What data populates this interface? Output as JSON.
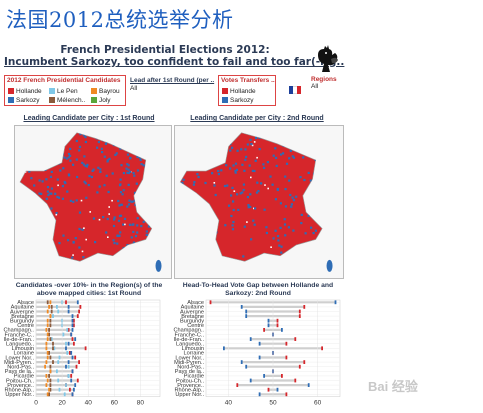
{
  "slide": {
    "title": "法国2012总统选举分析",
    "watermark": "Bai 经验"
  },
  "dashboard": {
    "title": "French Presidential Elections 2012:",
    "subtitle": "Incumbent Sarkozy, too confident to fail and too far(-rig..",
    "candidates_legend": {
      "title": "2012 French Presidential Candidates",
      "items": [
        {
          "label": "Hollande",
          "color": "#d6262b"
        },
        {
          "label": "Le Pen",
          "color": "#7fc8e8"
        },
        {
          "label": "Bayrou",
          "color": "#f08a24"
        },
        {
          "label": "Sarkozy",
          "color": "#2f6db5"
        },
        {
          "label": "Mélench..",
          "color": "#8a5a3c"
        },
        {
          "label": "Joly",
          "color": "#5aa63a"
        }
      ]
    },
    "lead_filter": {
      "title": "Lead after 1st Round (per ..",
      "value": "All"
    },
    "votes_legend": {
      "title": "Votes Transfers ..",
      "items": [
        {
          "label": "Hollande",
          "color": "#d6262b"
        },
        {
          "label": "Sarkozy",
          "color": "#2f6db5"
        }
      ]
    },
    "regions": {
      "title": "Regions",
      "value": "All"
    },
    "flag_colors": [
      "#1d3f9a",
      "#ffffff",
      "#d6262b"
    ],
    "map1_title": "Leading Candidate per City : 1st Round",
    "map2_title": "Leading Candidate per City : 2nd Round"
  },
  "chart_data": [
    {
      "type": "bar",
      "title": "Candidates -over 10%- in the Region(s) of the above mapped cities: 1st Round",
      "categories": [
        "Alsace",
        "Aquitaine",
        "Auvergne",
        "Bretagne",
        "Burgundy",
        "Centre",
        "Champagn..",
        "Franche-C..",
        "Ile-de-Fran..",
        "Languedo..",
        "Limousin",
        "Lorraine",
        "Lower Nor..",
        "Midi-Pyren..",
        "Nord-Pas..",
        "Pays de la..",
        "Picardie",
        "Poitou-Ch..",
        "Provence..",
        "Rhône-Alp..",
        "Upper Nor.."
      ],
      "xticks": [
        0,
        20,
        40,
        60,
        80
      ],
      "xlim": [
        0,
        95
      ],
      "series": [
        {
          "name": "Hollande",
          "color": "#d6262b",
          "values": [
            23,
            34,
            33,
            32,
            29,
            29,
            25,
            27,
            28,
            29,
            38,
            26,
            30,
            33,
            31,
            28,
            27,
            32,
            23,
            26,
            28
          ]
        },
        {
          "name": "Sarkozy",
          "color": "#2f6db5",
          "values": [
            32,
            25,
            25,
            28,
            28,
            28,
            28,
            27,
            30,
            25,
            23,
            27,
            28,
            25,
            23,
            28,
            25,
            27,
            30,
            29,
            28
          ]
        },
        {
          "name": "Le Pen",
          "color": "#7fc8e8",
          "values": [
            20,
            16,
            17,
            13,
            20,
            20,
            24,
            21,
            12,
            23,
            14,
            24,
            18,
            17,
            25,
            16,
            25,
            17,
            23,
            18,
            22
          ]
        },
        {
          "name": "Mélench..",
          "color": "#8a5a3c",
          "values": [
            9,
            12,
            12,
            11,
            11,
            11,
            10,
            10,
            11,
            13,
            13,
            10,
            11,
            13,
            11,
            11,
            10,
            11,
            11,
            11,
            10
          ]
        },
        {
          "name": "Bayrou",
          "color": "#f08a24",
          "values": [
            11,
            10,
            9,
            11,
            9,
            9,
            8,
            9,
            9,
            8,
            8,
            9,
            9,
            8,
            7,
            11,
            8,
            9,
            8,
            10,
            9
          ]
        }
      ]
    },
    {
      "type": "bar",
      "title": "Head-To-Head Vote Gap between Hollande and Sarkozy: 2nd Round",
      "categories": [
        "Alsace",
        "Aquitaine",
        "Auvergne",
        "Bretagne",
        "Burgundy",
        "Centre",
        "Champagn..",
        "Franche-C..",
        "Ile-de-Fran..",
        "Languedo..",
        "Limousin",
        "Lorraine",
        "Lower Nor..",
        "Midi-Pyren..",
        "Nord-Pas..",
        "Pays de la..",
        "Picardie",
        "Poitou-Ch..",
        "Provence..",
        "Rhône-Alp..",
        "Upper Nor.."
      ],
      "xticks": [
        40,
        50,
        60
      ],
      "xlim": [
        35,
        65
      ],
      "series": [
        {
          "name": "Hollande",
          "color": "#d6262b",
          "values": [
            36,
            57,
            56,
            56,
            51,
            51,
            48,
            50,
            55,
            53,
            61,
            50,
            53,
            57,
            56,
            50,
            52,
            55,
            42,
            49,
            53
          ]
        },
        {
          "name": "Sarkozy",
          "color": "#2f6db5",
          "values": [
            64,
            43,
            44,
            44,
            49,
            49,
            52,
            50,
            45,
            47,
            39,
            50,
            47,
            43,
            44,
            50,
            48,
            45,
            58,
            51,
            47
          ]
        }
      ]
    }
  ]
}
